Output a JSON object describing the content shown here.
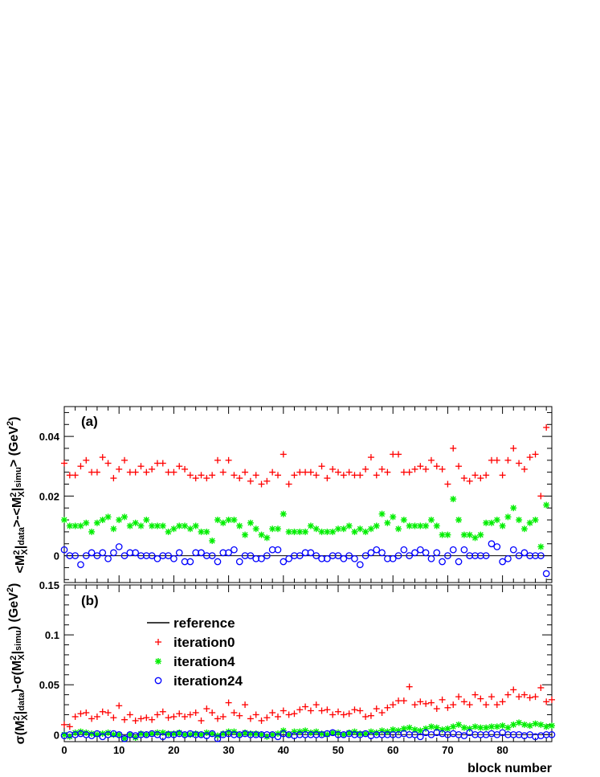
{
  "chart_data": [
    {
      "panel": "(a)",
      "type": "scatter",
      "xlabel": "block number",
      "ylabel": "<M²X|data>-<M²X|simu> (GeV²)",
      "ylabel_parts": [
        "<M",
        "2",
        "X",
        "|",
        "data",
        ">-<M",
        "2",
        "X",
        "|",
        "simu",
        "> (GeV",
        "2",
        ")"
      ],
      "xlim": [
        0,
        89
      ],
      "ylim": [
        -0.009,
        0.05
      ],
      "xticks": [
        0,
        10,
        20,
        30,
        40,
        50,
        60,
        70,
        80
      ],
      "yticks": [
        0,
        0.02,
        0.04
      ],
      "ytick_labels": [
        "0",
        "0.02",
        "0.04"
      ],
      "reference": 0,
      "series": [
        {
          "name": "iteration0",
          "marker": "plus",
          "color": "#ff0000",
          "values": [
            0.031,
            0.027,
            0.027,
            0.03,
            0.032,
            0.028,
            0.028,
            0.033,
            0.031,
            0.026,
            0.029,
            0.032,
            0.028,
            0.028,
            0.03,
            0.028,
            0.029,
            0.031,
            0.031,
            0.028,
            0.028,
            0.03,
            0.029,
            0.027,
            0.026,
            0.027,
            0.026,
            0.027,
            0.032,
            0.028,
            0.032,
            0.027,
            0.026,
            0.028,
            0.025,
            0.027,
            0.024,
            0.025,
            0.028,
            0.027,
            0.034,
            0.024,
            0.027,
            0.028,
            0.028,
            0.028,
            0.027,
            0.03,
            0.026,
            0.029,
            0.028,
            0.027,
            0.028,
            0.027,
            0.027,
            0.029,
            0.033,
            0.027,
            0.029,
            0.028,
            0.034,
            0.034,
            0.028,
            0.028,
            0.029,
            0.03,
            0.029,
            0.032,
            0.03,
            0.029,
            0.024,
            0.036,
            0.03,
            0.026,
            0.025,
            0.027,
            0.026,
            0.027,
            0.032,
            0.032,
            0.027,
            0.032,
            0.036,
            0.031,
            0.029,
            0.033,
            0.034,
            0.02,
            0.043
          ]
        },
        {
          "name": "iteration4",
          "marker": "star",
          "color": "#00ee00",
          "values": [
            0.012,
            0.01,
            0.01,
            0.01,
            0.011,
            0.008,
            0.011,
            0.012,
            0.013,
            0.009,
            0.012,
            0.013,
            0.01,
            0.011,
            0.01,
            0.012,
            0.01,
            0.01,
            0.01,
            0.008,
            0.009,
            0.01,
            0.01,
            0.009,
            0.01,
            0.008,
            0.008,
            0.005,
            0.012,
            0.011,
            0.012,
            0.012,
            0.01,
            0.007,
            0.011,
            0.009,
            0.007,
            0.006,
            0.009,
            0.009,
            0.014,
            0.008,
            0.008,
            0.008,
            0.008,
            0.01,
            0.009,
            0.008,
            0.008,
            0.008,
            0.009,
            0.009,
            0.01,
            0.008,
            0.009,
            0.008,
            0.009,
            0.01,
            0.014,
            0.011,
            0.013,
            0.009,
            0.012,
            0.01,
            0.01,
            0.01,
            0.01,
            0.012,
            0.01,
            0.007,
            0.007,
            0.019,
            0.012,
            0.007,
            0.007,
            0.006,
            0.007,
            0.011,
            0.011,
            0.012,
            0.01,
            0.013,
            0.016,
            0.012,
            0.009,
            0.011,
            0.012,
            0.003,
            0.017
          ]
        },
        {
          "name": "iteration24",
          "marker": "circle",
          "color": "#0000ff",
          "values": [
            0.002,
            0.0,
            0.0,
            -0.003,
            0.0,
            0.001,
            0.0,
            0.001,
            -0.001,
            0.001,
            0.003,
            0.0,
            0.001,
            0.001,
            0.0,
            0.0,
            0.0,
            -0.001,
            0.0,
            0.0,
            -0.001,
            0.001,
            -0.002,
            -0.002,
            0.001,
            0.001,
            0.0,
            0.0,
            -0.002,
            0.001,
            0.001,
            0.002,
            -0.002,
            0.0,
            0.0,
            -0.001,
            -0.001,
            0.0,
            0.002,
            0.002,
            -0.002,
            -0.001,
            0.0,
            0.0,
            0.001,
            0.001,
            0.0,
            -0.001,
            -0.001,
            0.0,
            0.0,
            -0.001,
            0.0,
            -0.001,
            -0.003,
            0.0,
            0.001,
            0.002,
            0.001,
            -0.001,
            -0.001,
            0.0,
            0.002,
            0.0,
            0.001,
            0.002,
            0.001,
            -0.001,
            0.001,
            -0.002,
            0.0,
            0.002,
            -0.002,
            0.002,
            0.0,
            0.0,
            0.0,
            0.0,
            0.004,
            0.003,
            -0.002,
            -0.001,
            0.002,
            0.0,
            0.001,
            0.0,
            0.0,
            0.0,
            -0.006
          ]
        }
      ]
    },
    {
      "panel": "(b)",
      "type": "scatter",
      "xlabel": "block number",
      "ylabel": "σ(M²X|data)-σ(M²X|simu) (GeV²)",
      "ylabel_parts": [
        "σ(M",
        "2",
        "X",
        "|",
        "data",
        ")-σ(M",
        "2",
        "X",
        "|",
        "simu",
        ") (GeV",
        "2",
        ")"
      ],
      "xlim": [
        0,
        89
      ],
      "ylim": [
        -0.007,
        0.15
      ],
      "xticks": [
        0,
        10,
        20,
        30,
        40,
        50,
        60,
        70,
        80
      ],
      "xtick_labels": [
        "0",
        "10",
        "20",
        "30",
        "40",
        "50",
        "60",
        "70",
        "80"
      ],
      "yticks": [
        0,
        0.05,
        0.1,
        0.15
      ],
      "ytick_labels": [
        "0",
        "0.05",
        "0.1",
        "0.15"
      ],
      "reference": 0,
      "series": [
        {
          "name": "iteration0",
          "marker": "plus",
          "color": "#ff0000",
          "values": [
            0.01,
            0.008,
            0.018,
            0.021,
            0.022,
            0.016,
            0.018,
            0.023,
            0.022,
            0.017,
            0.029,
            0.015,
            0.02,
            0.014,
            0.016,
            0.017,
            0.015,
            0.02,
            0.023,
            0.017,
            0.018,
            0.021,
            0.018,
            0.02,
            0.022,
            0.014,
            0.026,
            0.022,
            0.016,
            0.018,
            0.032,
            0.022,
            0.019,
            0.03,
            0.016,
            0.02,
            0.014,
            0.017,
            0.022,
            0.018,
            0.024,
            0.02,
            0.021,
            0.025,
            0.028,
            0.024,
            0.03,
            0.024,
            0.025,
            0.02,
            0.023,
            0.02,
            0.021,
            0.025,
            0.024,
            0.018,
            0.019,
            0.026,
            0.022,
            0.027,
            0.03,
            0.034,
            0.034,
            0.048,
            0.03,
            0.033,
            0.031,
            0.032,
            0.026,
            0.035,
            0.027,
            0.03,
            0.038,
            0.033,
            0.03,
            0.04,
            0.036,
            0.03,
            0.038,
            0.03,
            0.033,
            0.04,
            0.045,
            0.038,
            0.04,
            0.037,
            0.038,
            0.047,
            0.033,
            0.035
          ]
        },
        {
          "name": "iteration4",
          "marker": "star",
          "color": "#00ee00",
          "values": [
            0.0,
            -0.002,
            0.002,
            0.003,
            0.002,
            0.001,
            0.0,
            0.001,
            0.002,
            0.0,
            0.0,
            -0.004,
            0.0,
            -0.003,
            0.001,
            0.0,
            0.001,
            0.002,
            0.002,
            0.001,
            0.001,
            0.002,
            0.0,
            0.0,
            0.001,
            0.0,
            0.002,
            0.001,
            -0.001,
            0.001,
            0.003,
            0.003,
            0.0,
            0.002,
            0.001,
            0.001,
            0.0,
            -0.002,
            0.0,
            0.001,
            0.004,
            0.0,
            0.003,
            0.003,
            0.004,
            0.002,
            0.003,
            0.001,
            0.0,
            0.002,
            0.002,
            0.0,
            0.002,
            0.003,
            0.001,
            0.001,
            0.003,
            0.002,
            0.004,
            0.003,
            0.005,
            0.004,
            0.006,
            0.007,
            0.005,
            0.004,
            0.006,
            0.008,
            0.007,
            0.005,
            0.006,
            0.008,
            0.01,
            0.007,
            0.006,
            0.008,
            0.007,
            0.007,
            0.008,
            0.008,
            0.009,
            0.007,
            0.01,
            0.012,
            0.01,
            0.009,
            0.011,
            0.01,
            0.008,
            0.009
          ]
        },
        {
          "name": "iteration24",
          "marker": "circle",
          "color": "#0000ff",
          "values": [
            -0.001,
            0.0,
            0.0,
            0.001,
            0.0,
            -0.001,
            0.001,
            -0.002,
            0.0,
            0.001,
            0.0,
            -0.004,
            0.0,
            -0.001,
            0.0,
            0.0,
            0.001,
            0.0,
            -0.002,
            0.0,
            0.0,
            0.001,
            0.0,
            0.001,
            0.0,
            0.0,
            -0.001,
            0.001,
            -0.004,
            0.0,
            0.001,
            0.0,
            0.0,
            0.001,
            0.0,
            0.0,
            0.0,
            0.0,
            0.0,
            -0.002,
            0.001,
            0.0,
            -0.001,
            0.0,
            0.0,
            0.0,
            0.0,
            0.0,
            0.001,
            0.002,
            0.0,
            0.0,
            0.001,
            0.0,
            0.0,
            0.001,
            -0.001,
            0.0,
            0.0,
            0.0,
            0.0,
            0.0,
            0.001,
            0.0,
            0.0,
            -0.002,
            0.002,
            0.0,
            0.002,
            0.001,
            0.0,
            0.001,
            0.0,
            -0.001,
            0.002,
            0.0,
            0.0,
            0.0,
            0.001,
            0.0,
            0.002,
            0.0,
            0.0,
            0.0,
            -0.001,
            0.0,
            -0.002,
            -0.001,
            0.0,
            0.0
          ]
        }
      ]
    }
  ],
  "legend": {
    "location": "top-left of panel (b)",
    "entries": [
      {
        "label": "reference",
        "marker": "line",
        "color": "#000000"
      },
      {
        "label": "iteration0",
        "marker": "plus",
        "color": "#ff0000"
      },
      {
        "label": "iteration4",
        "marker": "star",
        "color": "#00ee00"
      },
      {
        "label": "iteration24",
        "marker": "circle",
        "color": "#0000ff"
      }
    ]
  }
}
